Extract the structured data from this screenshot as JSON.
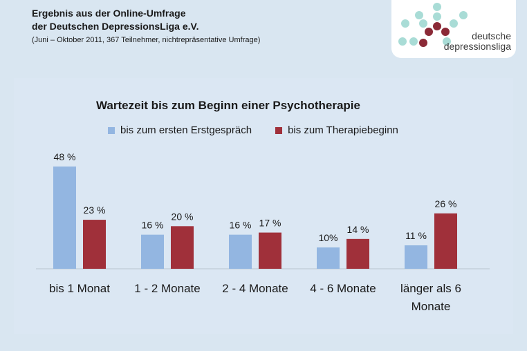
{
  "header": {
    "line1": "Ergebnis aus der Online-Umfrage",
    "line2": "der Deutschen DepressionsLiga e.V.",
    "line3": "(Juni – Oktober 2011, 367 Teilnehmer, nichtrepräsentative Umfrage)"
  },
  "logo": {
    "line1": "deutsche",
    "line2": "depressionsliga"
  },
  "colors": {
    "series1": "#93b6e1",
    "series2": "#a0303a",
    "background": "#d9e6f1"
  },
  "chart_data": {
    "type": "bar",
    "title": "Wartezeit bis zum Beginn einer Psychotherapie",
    "categories": [
      [
        "bis 1 Monat"
      ],
      [
        "1 - 2 Monate"
      ],
      [
        "2 - 4 Monate"
      ],
      [
        "4 - 6 Monate"
      ],
      [
        "länger als 6",
        "Monate"
      ]
    ],
    "series": [
      {
        "name": "bis zum ersten Erstgespräch",
        "values": [
          48,
          16,
          16,
          10,
          11
        ],
        "labels": [
          "48 %",
          "16 %",
          "16 %",
          "10%",
          "11 %"
        ]
      },
      {
        "name": "bis zum Therapiebeginn",
        "values": [
          23,
          20,
          17,
          14,
          26
        ],
        "labels": [
          "23 %",
          "20 %",
          "17 %",
          "14 %",
          "26 %"
        ]
      }
    ],
    "ylim": [
      0,
      48
    ],
    "grid": false,
    "legend": "top"
  }
}
